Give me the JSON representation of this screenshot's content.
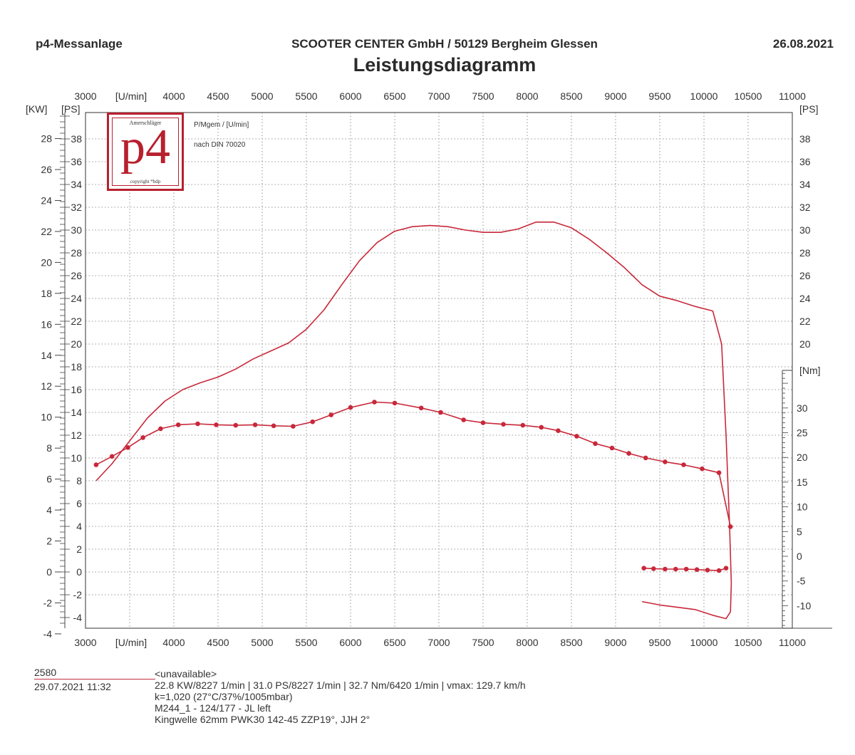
{
  "header": {
    "left": "p4-Messanlage",
    "center": "SCOOTER CENTER GmbH / 50129 Bergheim Glessen",
    "right": "26.08.2021"
  },
  "logo": {
    "top_text": "Amerschläger",
    "mark": "p4",
    "bottom_text": "copyright *bdp"
  },
  "chart_data": {
    "type": "line",
    "title": "Leistungsdiagramm",
    "annotations": [
      "P/Mgem / [U/min]",
      "nach DIN 70020"
    ],
    "x_axis": {
      "label": "[U/min]",
      "range": [
        3000,
        11000
      ],
      "ticks": [
        3000,
        4000,
        4500,
        5000,
        5500,
        6000,
        6500,
        7000,
        7500,
        8000,
        8500,
        9000,
        9500,
        10000,
        10500,
        11000
      ]
    },
    "y_axis_kw": {
      "label": "[KW]",
      "range": [
        -5,
        29
      ],
      "ticks": [
        -4,
        -2,
        0,
        2,
        4,
        6,
        8,
        10,
        12,
        14,
        16,
        18,
        20,
        22,
        24,
        26,
        28
      ]
    },
    "y_axis_ps_left": {
      "label": "[PS]",
      "range": [
        -6,
        40
      ],
      "ticks": [
        -4,
        -2,
        0,
        2,
        4,
        6,
        8,
        10,
        12,
        14,
        16,
        18,
        20,
        22,
        24,
        26,
        28,
        30,
        32,
        34,
        36,
        38
      ]
    },
    "y_axis_ps_right": {
      "label": "[PS]",
      "range": [
        -6,
        40
      ],
      "ticks": [
        20,
        22,
        24,
        26,
        28,
        30,
        32,
        34,
        36,
        38
      ]
    },
    "y_axis_nm": {
      "label": "[Nm]",
      "range": [
        -15,
        37
      ],
      "ticks": [
        -10,
        -5,
        0,
        5,
        10,
        15,
        20,
        25,
        30
      ]
    },
    "grid": true,
    "series": [
      {
        "axis": "ps",
        "color": "#c8283a",
        "markers": false,
        "points": [
          [
            3120,
            8.0
          ],
          [
            3300,
            9.5
          ],
          [
            3500,
            11.5
          ],
          [
            3700,
            13.5
          ],
          [
            3900,
            15.0
          ],
          [
            4100,
            16.0
          ],
          [
            4300,
            16.6
          ],
          [
            4500,
            17.1
          ],
          [
            4700,
            17.8
          ],
          [
            4900,
            18.7
          ],
          [
            5100,
            19.4
          ],
          [
            5300,
            20.1
          ],
          [
            5500,
            21.3
          ],
          [
            5700,
            23.0
          ],
          [
            5900,
            25.2
          ],
          [
            6100,
            27.3
          ],
          [
            6300,
            28.9
          ],
          [
            6500,
            29.9
          ],
          [
            6700,
            30.3
          ],
          [
            6900,
            30.4
          ],
          [
            7100,
            30.3
          ],
          [
            7300,
            30.0
          ],
          [
            7500,
            29.8
          ],
          [
            7700,
            29.8
          ],
          [
            7900,
            30.1
          ],
          [
            8100,
            30.7
          ],
          [
            8300,
            30.7
          ],
          [
            8500,
            30.2
          ],
          [
            8700,
            29.2
          ],
          [
            8900,
            28.0
          ],
          [
            9100,
            26.7
          ],
          [
            9300,
            25.2
          ],
          [
            9500,
            24.2
          ],
          [
            9700,
            23.8
          ],
          [
            9900,
            23.3
          ],
          [
            10100,
            22.9
          ],
          [
            10200,
            20.0
          ],
          [
            10250,
            12.0
          ],
          [
            10290,
            4.0
          ],
          [
            10310,
            -1.0
          ],
          [
            10300,
            -3.5
          ],
          [
            10250,
            -4.1
          ],
          [
            10100,
            -3.8
          ],
          [
            9900,
            -3.3
          ],
          [
            9700,
            -3.1
          ],
          [
            9500,
            -2.9
          ],
          [
            9300,
            -2.6
          ]
        ]
      },
      {
        "axis": "nm",
        "color": "#c8283a",
        "markers": true,
        "points": [
          [
            3120,
            18.5
          ],
          [
            3300,
            20.2
          ],
          [
            3480,
            22.0
          ],
          [
            3650,
            24.0
          ],
          [
            3850,
            25.8
          ],
          [
            4050,
            26.6
          ],
          [
            4270,
            26.8
          ],
          [
            4480,
            26.6
          ],
          [
            4700,
            26.5
          ],
          [
            4920,
            26.6
          ],
          [
            5130,
            26.4
          ],
          [
            5350,
            26.3
          ],
          [
            5570,
            27.2
          ],
          [
            5780,
            28.6
          ],
          [
            6000,
            30.1
          ],
          [
            6270,
            31.2
          ],
          [
            6500,
            31.0
          ],
          [
            6800,
            30.0
          ],
          [
            7020,
            29.1
          ],
          [
            7280,
            27.6
          ],
          [
            7500,
            27.0
          ],
          [
            7730,
            26.7
          ],
          [
            7950,
            26.5
          ],
          [
            8160,
            26.1
          ],
          [
            8350,
            25.4
          ],
          [
            8560,
            24.3
          ],
          [
            8770,
            22.8
          ],
          [
            8960,
            21.9
          ],
          [
            9150,
            20.8
          ],
          [
            9340,
            19.9
          ],
          [
            9560,
            19.1
          ],
          [
            9770,
            18.5
          ],
          [
            9980,
            17.7
          ],
          [
            10170,
            16.9
          ],
          [
            10300,
            6.0
          ]
        ]
      },
      {
        "axis": "nm",
        "color": "#c8283a",
        "markers": true,
        "points": [
          [
            9320,
            -2.4
          ],
          [
            9430,
            -2.5
          ],
          [
            9560,
            -2.6
          ],
          [
            9680,
            -2.6
          ],
          [
            9800,
            -2.6
          ],
          [
            9920,
            -2.7
          ],
          [
            10040,
            -2.8
          ],
          [
            10170,
            -2.9
          ],
          [
            10250,
            -2.4
          ]
        ]
      }
    ]
  },
  "footer": {
    "run_id": "2580",
    "run_date": "29.07.2021  11:32",
    "lines": [
      "<unavailable>",
      "22.8 KW/8227 1/min  |  31.0 PS/8227 1/min  |  32.7 Nm/6420 1/min | vmax: 129.7 km/h",
      "k=1,020 (27°C/37%/1005mbar)",
      "M244_1 - 124/177 - JL left",
      "Kingwelle 62mm PWK30 142-45 ZZP19°, JJH 2°"
    ]
  }
}
